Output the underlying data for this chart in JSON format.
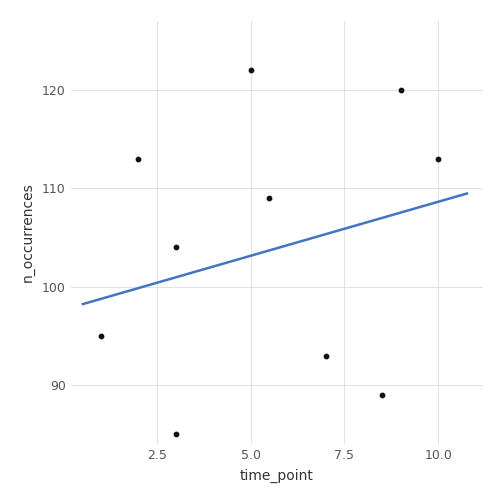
{
  "x": [
    1,
    2,
    3,
    3,
    5,
    5.5,
    7,
    8.5,
    9,
    10
  ],
  "y": [
    95,
    113,
    104,
    85,
    122,
    109,
    93,
    89,
    120,
    113
  ],
  "line_x": [
    0.5,
    10.8
  ],
  "line_y": [
    98.2,
    109.5
  ],
  "line_color": "#4472C4",
  "point_color": "#111111",
  "point_size": 10,
  "xlabel": "time_point",
  "ylabel": "n_occurrences",
  "xlim": [
    0.2,
    11.2
  ],
  "ylim": [
    84,
    127
  ],
  "xticks": [
    2.5,
    5.0,
    7.5,
    10.0
  ],
  "yticks": [
    90,
    100,
    110,
    120
  ],
  "background_color": "#ffffff",
  "grid_color": "#dddddd",
  "panel_bg": "#ffffff"
}
